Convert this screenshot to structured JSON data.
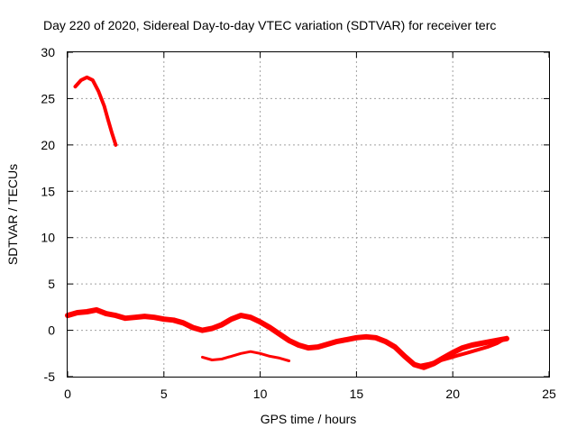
{
  "chart_data": {
    "type": "line",
    "title": "Day 220 of 2020, Sidereal Day-to-day VTEC variation (SDTVAR) for receiver terc",
    "xlabel": "GPS time / hours",
    "ylabel": "SDTVAR / TECUs",
    "xlim": [
      0,
      25
    ],
    "ylim": [
      -5,
      30
    ],
    "xticks": [
      0,
      5,
      10,
      15,
      20,
      25
    ],
    "yticks": [
      -5,
      0,
      5,
      10,
      15,
      20,
      25,
      30
    ],
    "grid": true,
    "legend": "none",
    "series_color": "#ff0000",
    "series": [
      {
        "name": "track-a",
        "x": [
          0.4,
          0.7,
          1.0,
          1.3,
          1.6,
          1.9,
          2.1,
          2.3,
          2.5
        ],
        "y": [
          26.3,
          27.0,
          27.3,
          27.0,
          25.8,
          24.2,
          22.7,
          21.3,
          20.0
        ]
      },
      {
        "name": "track-b",
        "x": [
          0.0,
          0.5,
          1.0,
          1.5,
          2.0,
          2.5,
          3.0,
          3.5,
          4.0,
          4.5,
          5.0,
          5.5,
          6.0,
          6.5,
          7.0,
          7.5,
          8.0,
          8.5,
          9.0,
          9.5,
          10.0,
          10.5,
          11.0,
          11.5,
          12.0,
          12.5,
          13.0,
          13.5,
          14.0,
          14.5,
          15.0,
          15.5,
          16.0,
          16.5,
          17.0,
          17.5,
          18.0,
          18.5,
          19.0,
          19.5,
          20.0,
          20.5,
          21.0,
          21.5,
          22.0,
          22.5,
          22.8
        ],
        "y": [
          1.6,
          1.9,
          2.0,
          2.2,
          1.8,
          1.6,
          1.3,
          1.4,
          1.5,
          1.4,
          1.2,
          1.1,
          0.8,
          0.3,
          0.0,
          0.2,
          0.6,
          1.2,
          1.6,
          1.4,
          0.9,
          0.3,
          -0.4,
          -1.1,
          -1.6,
          -1.9,
          -1.8,
          -1.5,
          -1.2,
          -1.0,
          -0.8,
          -0.7,
          -0.8,
          -1.2,
          -1.8,
          -2.8,
          -3.7,
          -4.0,
          -3.6,
          -3.0,
          -2.4,
          -1.9,
          -1.6,
          -1.4,
          -1.2,
          -1.0,
          -0.9
        ]
      },
      {
        "name": "track-c",
        "x": [
          7.0,
          7.5,
          8.0,
          8.5,
          9.0,
          9.5,
          10.0,
          10.5,
          11.0,
          11.5
        ],
        "y": [
          -2.9,
          -3.2,
          -3.1,
          -2.8,
          -2.5,
          -2.3,
          -2.5,
          -2.8,
          -3.0,
          -3.3
        ]
      },
      {
        "name": "track-d",
        "x": [
          18.3,
          18.8,
          19.3,
          19.8,
          20.3,
          20.8,
          21.3,
          21.8,
          22.3,
          22.8
        ],
        "y": [
          -3.8,
          -3.6,
          -3.3,
          -3.0,
          -2.7,
          -2.4,
          -2.1,
          -1.8,
          -1.4,
          -0.8
        ]
      }
    ]
  }
}
